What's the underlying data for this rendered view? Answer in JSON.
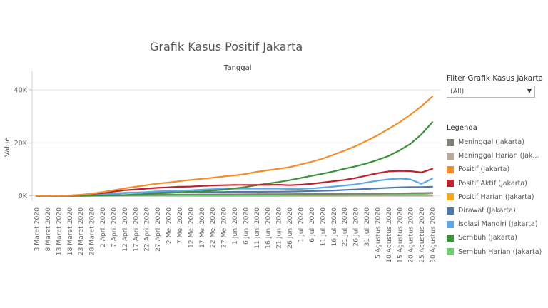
{
  "chart_data": {
    "type": "line",
    "title": "Grafik Kasus Positif Jakarta",
    "xlabel": "Tanggal",
    "ylabel": "Value",
    "yticks": [
      "0K",
      "20K",
      "40K"
    ],
    "ytick_values": [
      0,
      20000,
      40000
    ],
    "ylim": [
      -2000,
      47000
    ],
    "grid": "horizontal",
    "legend_position": "right",
    "x": [
      "3 Maret 2020",
      "8 Maret 2020",
      "13 Maret 2020",
      "18 Maret 2020",
      "23 Maret 2020",
      "28 Maret 2020",
      "2 April 2020",
      "7 April 2020",
      "12 April 2020",
      "17 April 2020",
      "22 April 2020",
      "27 April 2020",
      "2 Mei 2020",
      "7 Mei 2020",
      "12 Mei 2020",
      "17 Mei 2020",
      "22 Mei 2020",
      "27 Mei 2020",
      "1 Juni 2020",
      "6 Juni 2020",
      "11 Juni 2020",
      "16 Juni 2020",
      "21 Juni 2020",
      "26 Juni 2020",
      "1 Juli 2020",
      "6 Juli 2020",
      "11 Juli 2020",
      "16 Juli 2020",
      "21 Juli 2020",
      "26 Juli 2020",
      "31 Juli 2020",
      "5 Agustus 2020",
      "10 Agustus 2020",
      "15 Agustus 2020",
      "20 Agustus 2020",
      "25 Agustus 2020",
      "30 Agustus 2020"
    ],
    "series": [
      {
        "name": "Meninggal (Jakarta)",
        "color": "#7f7f77",
        "values": [
          0,
          0,
          2,
          10,
          30,
          60,
          90,
          150,
          200,
          260,
          320,
          380,
          420,
          460,
          480,
          500,
          510,
          520,
          540,
          560,
          580,
          600,
          620,
          640,
          660,
          680,
          700,
          720,
          740,
          770,
          800,
          830,
          870,
          920,
          980,
          1050,
          1150
        ]
      },
      {
        "name": "Meninggal Harian (Jakarta)",
        "color": "#b5aa9c",
        "values": [
          0,
          0,
          0,
          2,
          5,
          8,
          10,
          12,
          12,
          12,
          10,
          10,
          8,
          8,
          6,
          5,
          5,
          5,
          5,
          5,
          5,
          5,
          5,
          5,
          5,
          5,
          5,
          5,
          5,
          10,
          10,
          10,
          15,
          15,
          15,
          20,
          20
        ]
      },
      {
        "name": "Positif (Jakarta)",
        "color": "#f28e2b",
        "values": [
          0,
          0,
          10,
          100,
          400,
          800,
          1400,
          2100,
          2800,
          3400,
          4000,
          4600,
          5000,
          5500,
          6000,
          6400,
          6800,
          7300,
          7700,
          8200,
          9000,
          9600,
          10200,
          10800,
          11800,
          12800,
          14000,
          15500,
          17000,
          18700,
          20700,
          22800,
          25200,
          27700,
          30600,
          33800,
          37500
        ]
      },
      {
        "name": "Positif Aktif (Jakarta)",
        "color": "#c0212e",
        "values": [
          0,
          0,
          10,
          90,
          350,
          700,
          1100,
          1600,
          2100,
          2400,
          2700,
          3000,
          3200,
          3400,
          3500,
          3700,
          3900,
          4000,
          4100,
          4100,
          4100,
          4100,
          4200,
          4000,
          4200,
          4500,
          5000,
          5500,
          6000,
          6700,
          7600,
          8500,
          9200,
          9400,
          9300,
          8800,
          10200
        ]
      },
      {
        "name": "Positif Harian (Jakarta)",
        "color": "#f5a623",
        "values": [
          0,
          0,
          5,
          20,
          50,
          80,
          100,
          120,
          120,
          120,
          120,
          110,
          100,
          100,
          110,
          110,
          120,
          120,
          130,
          140,
          150,
          150,
          170,
          190,
          200,
          230,
          250,
          280,
          300,
          320,
          380,
          400,
          450,
          500,
          550,
          650,
          900
        ]
      },
      {
        "name": "Dirawat (Jakarta)",
        "color": "#4e79a7",
        "values": [
          0,
          0,
          10,
          80,
          250,
          500,
          700,
          900,
          1100,
          1200,
          1300,
          1300,
          1350,
          1400,
          1400,
          1400,
          1400,
          1450,
          1500,
          1500,
          1500,
          1550,
          1550,
          1600,
          1700,
          1800,
          1900,
          2000,
          2200,
          2400,
          2600,
          2800,
          3000,
          3200,
          3300,
          3300,
          3400
        ]
      },
      {
        "name": "Isolasi Mandiri (Jakarta)",
        "color": "#5fa8e8",
        "values": [
          0,
          0,
          0,
          10,
          80,
          200,
          400,
          700,
          1000,
          1200,
          1400,
          1700,
          1900,
          2000,
          2100,
          2300,
          2500,
          2600,
          2700,
          2700,
          2700,
          2700,
          2700,
          2600,
          2600,
          2800,
          3100,
          3500,
          3900,
          4300,
          5000,
          5700,
          6200,
          6500,
          6200,
          4500,
          6500
        ]
      },
      {
        "name": "Sembuh (Jakarta)",
        "color": "#3a923a",
        "values": [
          0,
          0,
          0,
          5,
          20,
          50,
          100,
          200,
          300,
          500,
          700,
          900,
          1100,
          1300,
          1500,
          1700,
          2000,
          2300,
          2800,
          3300,
          4000,
          4600,
          5200,
          5900,
          6700,
          7500,
          8300,
          9200,
          10200,
          11100,
          12200,
          13500,
          15000,
          17100,
          19600,
          23200,
          27800
        ]
      },
      {
        "name": "Sembuh Harian (Jakarta)",
        "color": "#6fcf6f",
        "values": [
          0,
          0,
          0,
          2,
          5,
          10,
          20,
          30,
          40,
          50,
          50,
          60,
          60,
          70,
          80,
          90,
          100,
          110,
          120,
          130,
          150,
          170,
          190,
          200,
          230,
          260,
          280,
          300,
          320,
          350,
          400,
          450,
          500,
          550,
          600,
          700,
          900
        ]
      }
    ]
  },
  "filter": {
    "label": "Filter Grafik Kasus Jakarta",
    "value": "(All)",
    "arrow_icon": "chevron-down-icon"
  },
  "legend": {
    "title": "Legenda"
  }
}
